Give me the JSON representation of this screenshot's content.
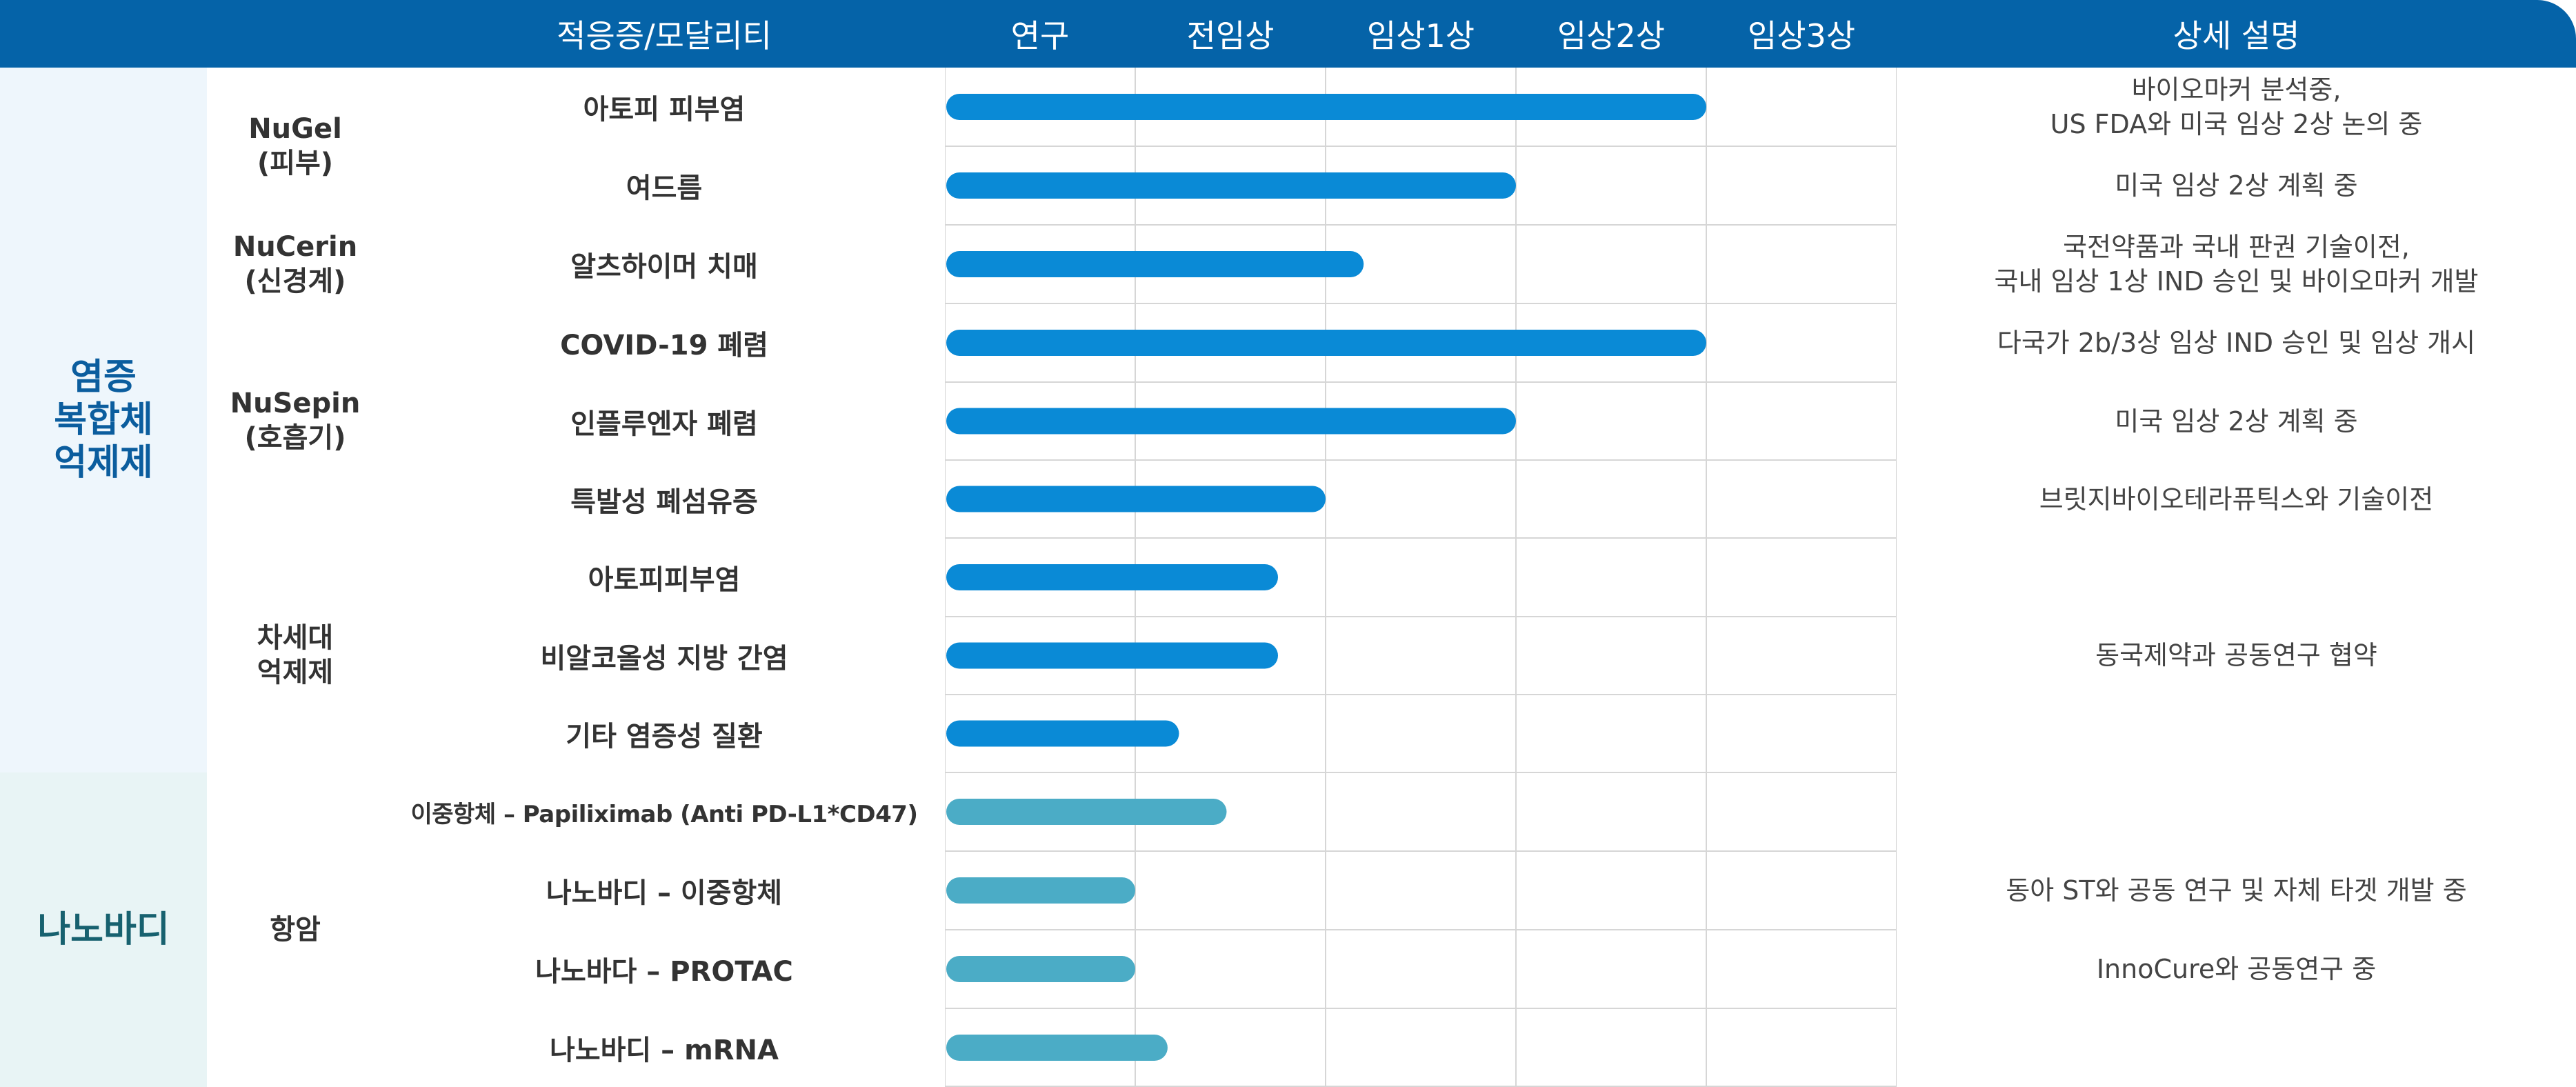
{
  "chart_data": {
    "type": "bar",
    "orientation": "horizontal",
    "stages": [
      "연구",
      "전임상",
      "임상1상",
      "임상2상",
      "임상3상"
    ],
    "columns": {
      "indication": "적응증/모달리티",
      "description": "상세 설명"
    },
    "groups": [
      {
        "label": "염증\n복합체\n억제제",
        "color": "#0a8ad6"
      },
      {
        "label": "나노바디",
        "color": "#4bacc6"
      }
    ],
    "platforms": [
      {
        "label": "NuGel\n(피부)"
      },
      {
        "label": "NuCerin\n(신경계)"
      },
      {
        "label": "NuSepin\n(호흡기)"
      },
      {
        "label": "차세대\n억제제"
      },
      {
        "label": "항암"
      }
    ],
    "rows": [
      {
        "indication": "아토피 피부염",
        "progress": 4.0,
        "description": "바이오마커 분석중,\nUS FDA와 미국 임상 2상 논의 중"
      },
      {
        "indication": "여드름",
        "progress": 3.0,
        "description": "미국 임상 2상 계획 중"
      },
      {
        "indication": "알츠하이머 치매",
        "progress": 2.2,
        "description": "국전약품과  국내 판권 기술이전,\n국내 임상 1상 IND 승인 및 바이오마커 개발"
      },
      {
        "indication": "COVID-19 폐렴",
        "progress": 4.0,
        "description": "다국가 2b/3상 임상 IND 승인 및 임상 개시"
      },
      {
        "indication": "인플루엔자 폐렴",
        "progress": 3.0,
        "description": "미국 임상 2상 계획 중"
      },
      {
        "indication": "특발성 폐섬유증",
        "progress": 2.0,
        "description": "브릿지바이오테라퓨틱스와 기술이전"
      },
      {
        "indication": "아토피피부염",
        "progress": 1.75,
        "description": ""
      },
      {
        "indication": "비알코올성 지방 간염",
        "progress": 1.75,
        "description": ""
      },
      {
        "indication": "기타 염증성 질환",
        "progress": 1.23,
        "description": ""
      },
      {
        "indication": "이중항체 – Papiliximab (Anti PD-L1*CD47)",
        "progress": 1.48,
        "description": ""
      },
      {
        "indication": "나노바디 – 이중항체",
        "progress": 1.0,
        "description": "동아 ST와 공동 연구 및 자체 타겟 개발 중"
      },
      {
        "indication": "나노바다 – PROTAC",
        "progress": 1.0,
        "description": "InnoCure와 공동연구 중"
      },
      {
        "indication": "나노바디 – mRNA",
        "progress": 1.17,
        "description": ""
      }
    ],
    "merged_description": "동국제약과 공동연구 협약"
  }
}
